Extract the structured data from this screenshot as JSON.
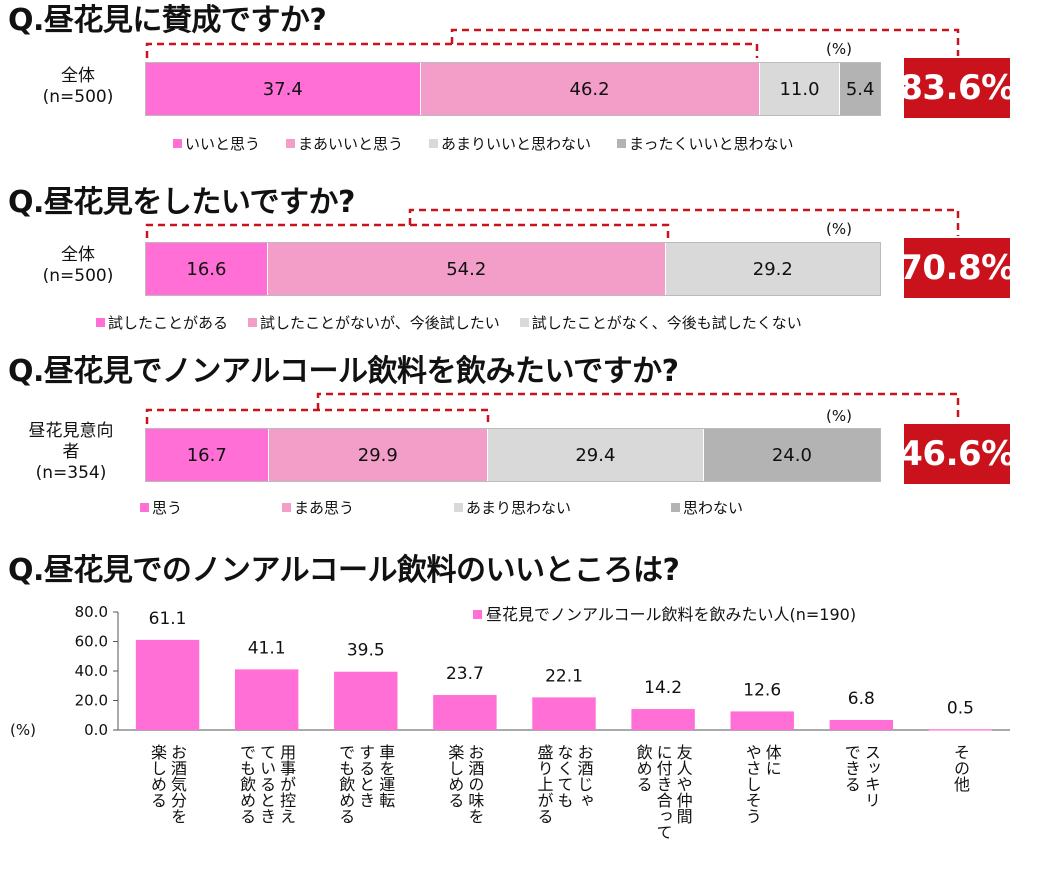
{
  "unit_label": "(%)",
  "colors": {
    "c1": "#ff6fd5",
    "c2": "#f29ec8",
    "c3": "#d9d9d9",
    "c4": "#b3b3b3",
    "accent": "#c9121b"
  },
  "q1": {
    "title": "Q.昼花見に賛成ですか?",
    "row_label_line1": "全体",
    "row_label_line2": "(n=500)",
    "total": "83.6%",
    "segments": [
      {
        "label": "いいと思う",
        "value": 37.4,
        "text": "37.4"
      },
      {
        "label": "まあいいと思う",
        "value": 46.2,
        "text": "46.2"
      },
      {
        "label": "あまりいいと思わない",
        "value": 11.0,
        "text": "11.0"
      },
      {
        "label": "まったくいいと思わない",
        "value": 5.4,
        "text": "5.4"
      }
    ]
  },
  "q2": {
    "title": "Q.昼花見をしたいですか?",
    "row_label_line1": "全体",
    "row_label_line2": "(n=500)",
    "total": "70.8%",
    "segments": [
      {
        "label": "試したことがある",
        "value": 16.6,
        "text": "16.6"
      },
      {
        "label": "試したことがないが、今後試したい",
        "value": 54.2,
        "text": "54.2"
      },
      {
        "label": "試したことがなく、今後も試したくない",
        "value": 29.2,
        "text": "29.2"
      }
    ]
  },
  "q3": {
    "title": "Q.昼花見でノンアルコール飲料を飲みたいですか?",
    "row_label_line1": "昼花見意向",
    "row_label_line2": "者",
    "row_label_line3": "(n=354)",
    "total": "46.6%",
    "segments": [
      {
        "label": "思う",
        "value": 16.7,
        "text": "16.7"
      },
      {
        "label": "まあ思う",
        "value": 29.9,
        "text": "29.9"
      },
      {
        "label": "あまり思わない",
        "value": 29.4,
        "text": "29.4"
      },
      {
        "label": "思わない",
        "value": 24.0,
        "text": "24.0"
      }
    ]
  },
  "q4": {
    "title": "Q.昼花見でのノンアルコール飲料のいいところは?"
  },
  "chart_data": {
    "type": "bar",
    "ylabel": "(%)",
    "ylim": [
      0,
      80
    ],
    "yticks": [
      "0.0",
      "20.0",
      "40.0",
      "60.0",
      "80.0"
    ],
    "series": [
      {
        "name": "昼花見でノンアルコール飲料を飲みたい人(n=190)"
      }
    ],
    "categories": [
      [
        "お酒気分を",
        "楽しめる"
      ],
      [
        "用事が控え",
        "ているとき",
        "でも飲める"
      ],
      [
        "車を運転",
        "するとき",
        "でも飲める"
      ],
      [
        "お酒の味を",
        "楽しめる"
      ],
      [
        "お酒じゃ",
        "なくても",
        "盛り上がる"
      ],
      [
        "友人や仲間",
        "に付き合って",
        "飲める"
      ],
      [
        "体に",
        "やさしそう"
      ],
      [
        "スッキリ",
        "できる"
      ],
      [
        "その他"
      ]
    ],
    "values": [
      61.1,
      41.1,
      39.5,
      23.7,
      22.1,
      14.2,
      12.6,
      6.8,
      0.5
    ],
    "value_labels": [
      "61.1",
      "41.1",
      "39.5",
      "23.7",
      "22.1",
      "14.2",
      "12.6",
      "6.8",
      "0.5"
    ]
  }
}
